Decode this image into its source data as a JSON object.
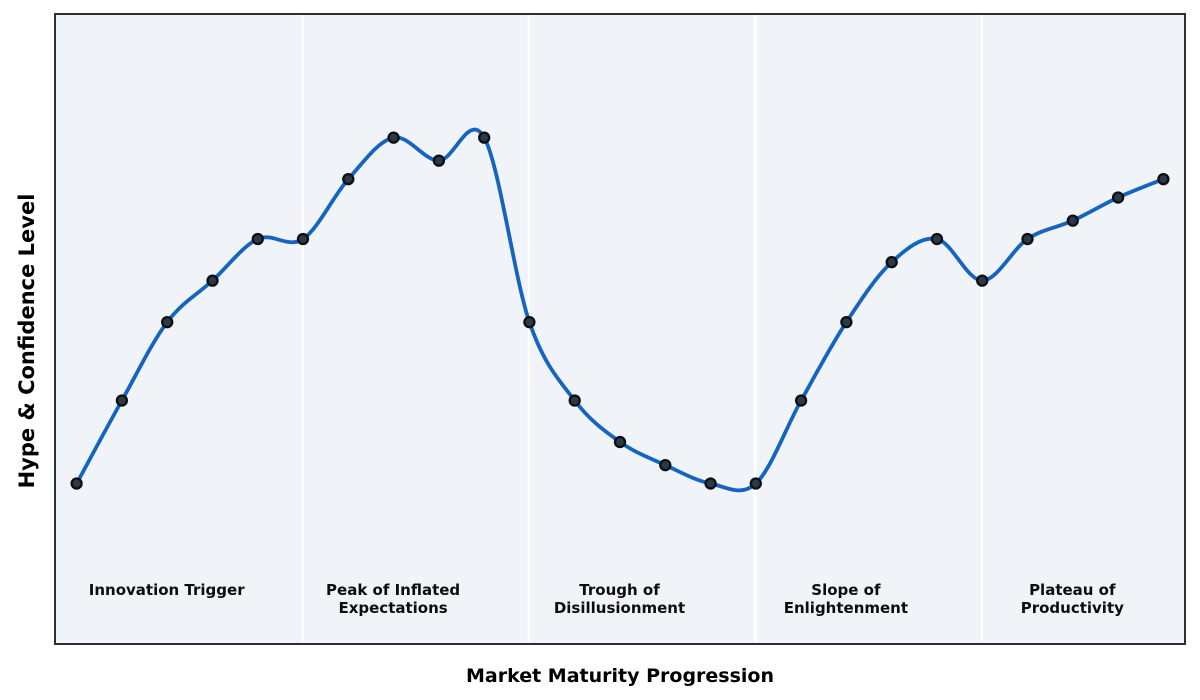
{
  "chart_data": {
    "type": "line",
    "title": "",
    "xlabel": "Market Maturity Progression",
    "ylabel": "Hype & Confidence Level",
    "x": [
      0,
      1,
      2,
      3,
      4,
      5,
      6,
      7,
      8,
      9,
      10,
      11,
      12,
      13,
      14,
      15,
      16,
      17,
      18,
      19,
      20,
      21,
      22,
      23,
      24
    ],
    "y": [
      10,
      28,
      45,
      54,
      63,
      63,
      76,
      85,
      80,
      85,
      45,
      28,
      19,
      14,
      10,
      10,
      28,
      45,
      58,
      63,
      54,
      63,
      67,
      72,
      76
    ],
    "xlim": [
      -0.5,
      24.5
    ],
    "ylim": [
      -25,
      112
    ],
    "grid": false,
    "legend": "none",
    "axis_tick_labels": "none",
    "curve_style": "smooth-spline-through-points",
    "phases": [
      {
        "label": "Innovation Trigger",
        "label_x": 2
      },
      {
        "label": "Peak of Inflated\nExpectations",
        "label_x": 7
      },
      {
        "label": "Trough of\nDisillusionment",
        "label_x": 12
      },
      {
        "label": "Slope of\nEnlightenment",
        "label_x": 17
      },
      {
        "label": "Plateau of\nProductivity",
        "label_x": 22
      }
    ],
    "phase_boundaries_x": [
      5,
      10,
      15,
      20
    ],
    "colors": {
      "line": "#1565c0",
      "marker_fill": "#2c3a47",
      "marker_edge": "#0b0f14",
      "plot_background": "#f0f4f8",
      "phase_separator": "#ffffff",
      "frame": "#2c3036",
      "page_background": "#ffffff",
      "label_text": "#0d0d0d"
    }
  }
}
